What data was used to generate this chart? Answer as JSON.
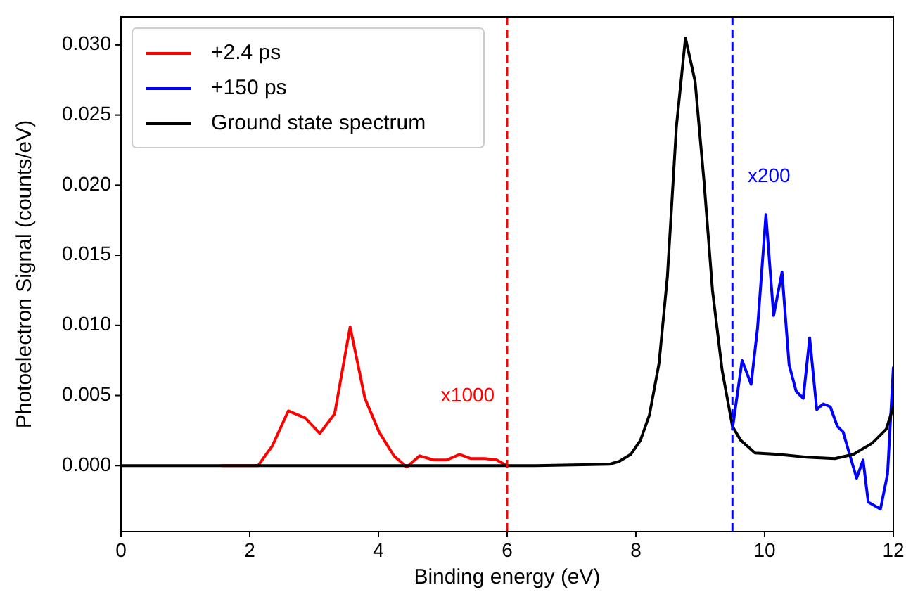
{
  "chart_data": {
    "type": "line",
    "xlabel": "Binding energy (eV)",
    "ylabel": "Photoelectron Signal (counts/eV)",
    "xlim": [
      0,
      12
    ],
    "xticks": [
      0,
      2,
      4,
      6,
      8,
      10,
      12
    ],
    "ylim": [
      -0.0047,
      0.032
    ],
    "yticks": [
      {
        "value": 0,
        "label": "0.000"
      },
      {
        "value": 0.005,
        "label": "0.005"
      },
      {
        "value": 0.01,
        "label": "0.010"
      },
      {
        "value": 0.015,
        "label": "0.015"
      },
      {
        "value": 0.02,
        "label": "0.020"
      },
      {
        "value": 0.025,
        "label": "0.025"
      },
      {
        "value": 0.03,
        "label": "0.030"
      }
    ],
    "grid": false,
    "legend": "top left",
    "line_style": "solid",
    "marker": "none",
    "series": [
      {
        "name": "+2.4 ps",
        "color": "#ff0000",
        "x": [
          1.57,
          2.13,
          2.35,
          2.6,
          2.86,
          3.09,
          3.32,
          3.56,
          3.79,
          4.01,
          4.24,
          4.44,
          4.64,
          4.86,
          5.06,
          5.26,
          5.44,
          5.66,
          5.84,
          5.99
        ],
        "values": [
          0,
          0,
          0.0014,
          0.0039,
          0.0034,
          0.0023,
          0.0037,
          0.0099,
          0.0048,
          0.0024,
          0.0007,
          -0.0001,
          0.0007,
          0.0004,
          0.0004,
          0.0008,
          0.0005,
          0.0005,
          0.0004,
          0
        ]
      },
      {
        "name": "+150 ps",
        "color": "#0000ff",
        "x": [
          9.5,
          9.65,
          9.79,
          9.89,
          10.02,
          10.14,
          10.27,
          10.38,
          10.49,
          10.6,
          10.7,
          10.81,
          10.91,
          11.02,
          11.13,
          11.22,
          11.32,
          11.43,
          11.53,
          11.61,
          11.8,
          11.91,
          12
        ],
        "values": [
          0.0026,
          0.0075,
          0.0058,
          0.0098,
          0.0179,
          0.0107,
          0.0138,
          0.0072,
          0.0053,
          0.0048,
          0.0091,
          0.004,
          0.0044,
          0.0042,
          0.0028,
          0.0024,
          0.0008,
          -0.0009,
          0.0004,
          -0.0026,
          -0.0031,
          -0.0006,
          0.007
        ]
      },
      {
        "name": "Ground state spectrum",
        "color": "#000000",
        "x": [
          0,
          6.43,
          7.59,
          7.74,
          7.92,
          8.07,
          8.21,
          8.36,
          8.49,
          8.63,
          8.77,
          8.92,
          9.06,
          9.19,
          9.34,
          9.5,
          9.63,
          9.85,
          10.21,
          10.65,
          11.09,
          11.38,
          11.67,
          11.89,
          12
        ],
        "values": [
          0,
          0,
          0.0001,
          0.0003,
          0.0008,
          0.0018,
          0.0036,
          0.0073,
          0.0135,
          0.0242,
          0.0305,
          0.0274,
          0.0202,
          0.0125,
          0.0068,
          0.0028,
          0.0018,
          0.0009,
          0.0008,
          0.0006,
          0.0005,
          0.0008,
          0.0016,
          0.0026,
          0.0042
        ]
      }
    ],
    "ref_lines": [
      {
        "axis": "x",
        "value": 6,
        "color": "#ff0000",
        "line_style": "dashed"
      },
      {
        "axis": "x",
        "value": 9.5,
        "color": "#0000ff",
        "line_style": "dashed"
      }
    ],
    "annotations": [
      "x1000",
      "x200"
    ]
  }
}
